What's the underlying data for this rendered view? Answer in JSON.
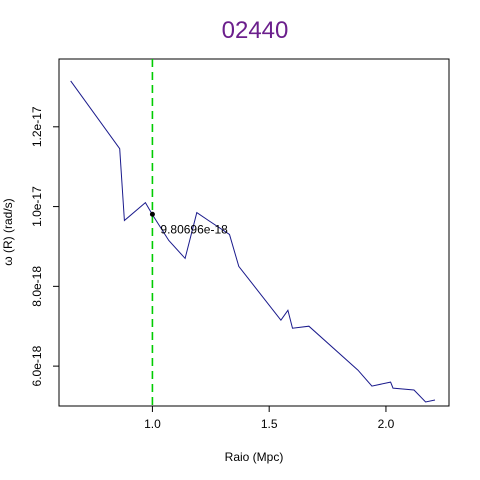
{
  "chart_data": {
    "type": "line",
    "title": "02440",
    "xlabel": "Raio (Mpc)",
    "ylabel": "ω (R) (rad/s)",
    "xlim": [
      0.6,
      2.27
    ],
    "ylim": [
      5e-18,
      1.37e-17
    ],
    "x_ticks": [
      1.0,
      1.5,
      2.0
    ],
    "x_tick_labels": [
      "1.0",
      "1.5",
      "2.0"
    ],
    "y_ticks": [
      6e-18,
      8e-18,
      1e-17,
      1.2e-17
    ],
    "y_tick_labels": [
      "6.0e-18",
      "8.0e-18",
      "1.0e-17",
      "1.2e-17"
    ],
    "grid": false,
    "line_color": "#1a1a8c",
    "series": [
      {
        "x": [
          0.65,
          0.86,
          0.88,
          0.97,
          1.0,
          1.07,
          1.14,
          1.19,
          1.24,
          1.33,
          1.37,
          1.55,
          1.58,
          1.6,
          1.67,
          1.88,
          1.94,
          2.02,
          2.03,
          2.12,
          2.17,
          2.21
        ],
        "y": [
          1.315e-17,
          1.145e-17,
          9.65e-18,
          1.01e-17,
          9.8e-18,
          9.15e-18,
          8.7e-18,
          9.85e-18,
          9.65e-18,
          9.3e-18,
          8.5e-18,
          7.15e-18,
          7.4e-18,
          6.95e-18,
          7e-18,
          5.9e-18,
          5.5e-18,
          5.6e-18,
          5.45e-18,
          5.4e-18,
          5.1e-18,
          5.15e-18
        ]
      }
    ],
    "vline": {
      "x": 1.0,
      "color": "#00cc00",
      "style": "dashed"
    },
    "marker": {
      "x": 1.0,
      "y": 9.80696e-18,
      "label": "9.80696e-18"
    }
  }
}
